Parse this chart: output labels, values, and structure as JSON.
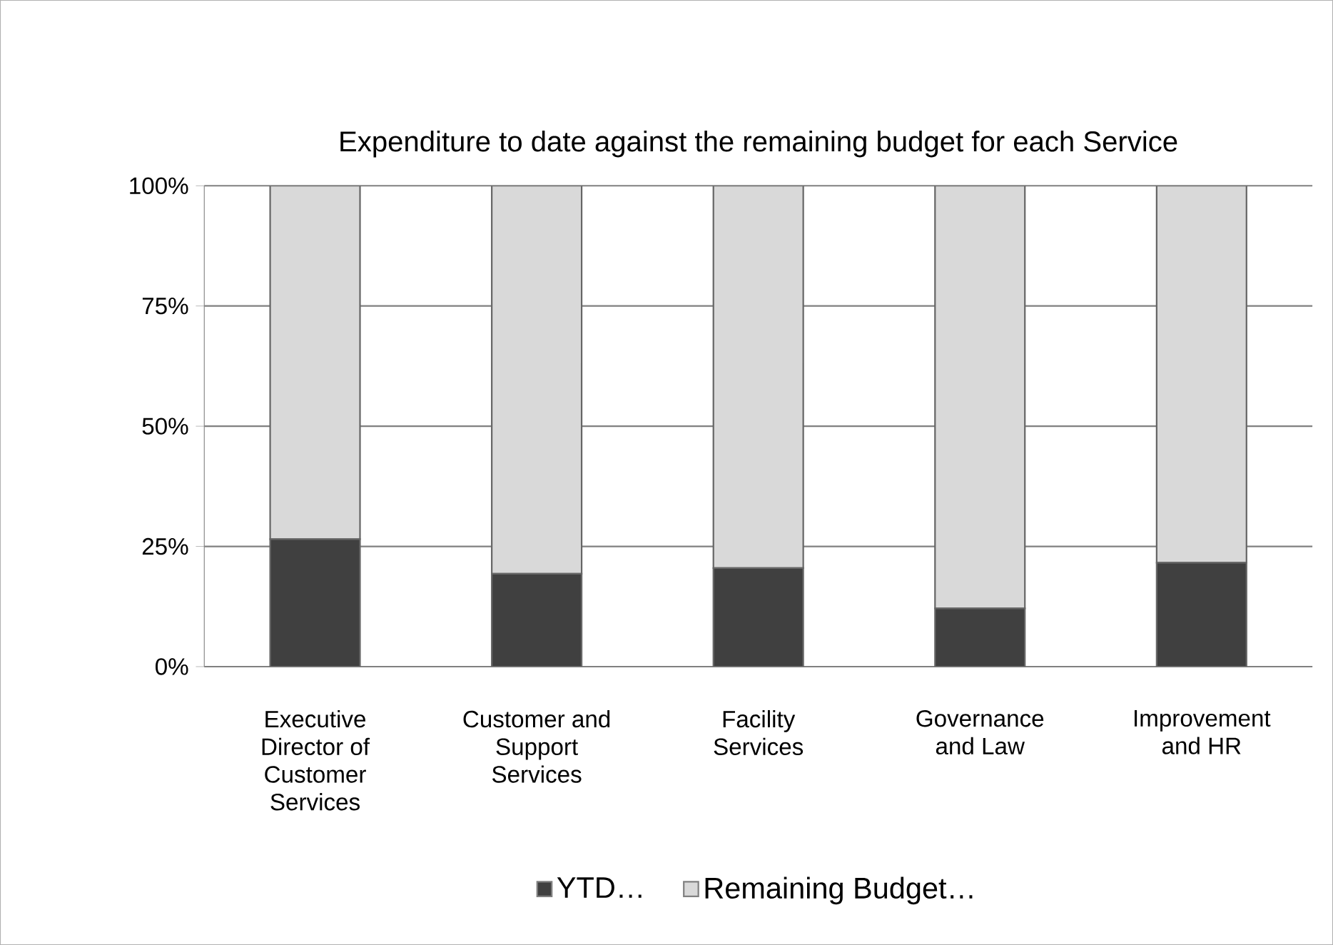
{
  "chart_data": {
    "type": "bar",
    "stacked": true,
    "title": "Expenditure to date against the remaining budget for each Service",
    "categories": [
      "Executive Director of Customer Services",
      "Customer and Support Services",
      "Facility Services",
      "Governance and Law",
      "Improvement and HR"
    ],
    "series": [
      {
        "name": "YTD…",
        "color": "#404040",
        "values": [
          26.5,
          19.3,
          20.5,
          12.1,
          21.6
        ]
      },
      {
        "name": "Remaining Budget…",
        "color": "#d9d9d9",
        "values": [
          73.5,
          80.7,
          79.5,
          87.9,
          78.4
        ]
      }
    ],
    "ylim": [
      0,
      100
    ],
    "yticks": [
      {
        "value": 0,
        "label": "0%"
      },
      {
        "value": 25,
        "label": "25%"
      },
      {
        "value": 50,
        "label": "50%"
      },
      {
        "value": 75,
        "label": "75%"
      },
      {
        "value": 100,
        "label": "100%"
      }
    ],
    "grid": "y",
    "legend": "bottom"
  }
}
